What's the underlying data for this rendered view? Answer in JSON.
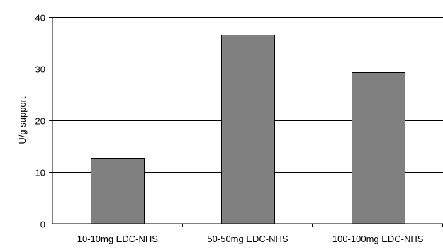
{
  "chart_data": {
    "type": "bar",
    "title": "",
    "xlabel": "",
    "ylabel": "U/g support",
    "categories": [
      "10-10mg EDC-NHS",
      "50-50mg EDC-NHS",
      "100-100mg EDC-NHS"
    ],
    "values": [
      12.8,
      36.6,
      29.3
    ],
    "ylim": [
      0,
      40
    ],
    "yticks": [
      0,
      10,
      20,
      30,
      40
    ],
    "grid": true,
    "legend": "none",
    "bar_color": "#808080",
    "bar_edge_color": "#000000",
    "grid_color": "#000000"
  }
}
